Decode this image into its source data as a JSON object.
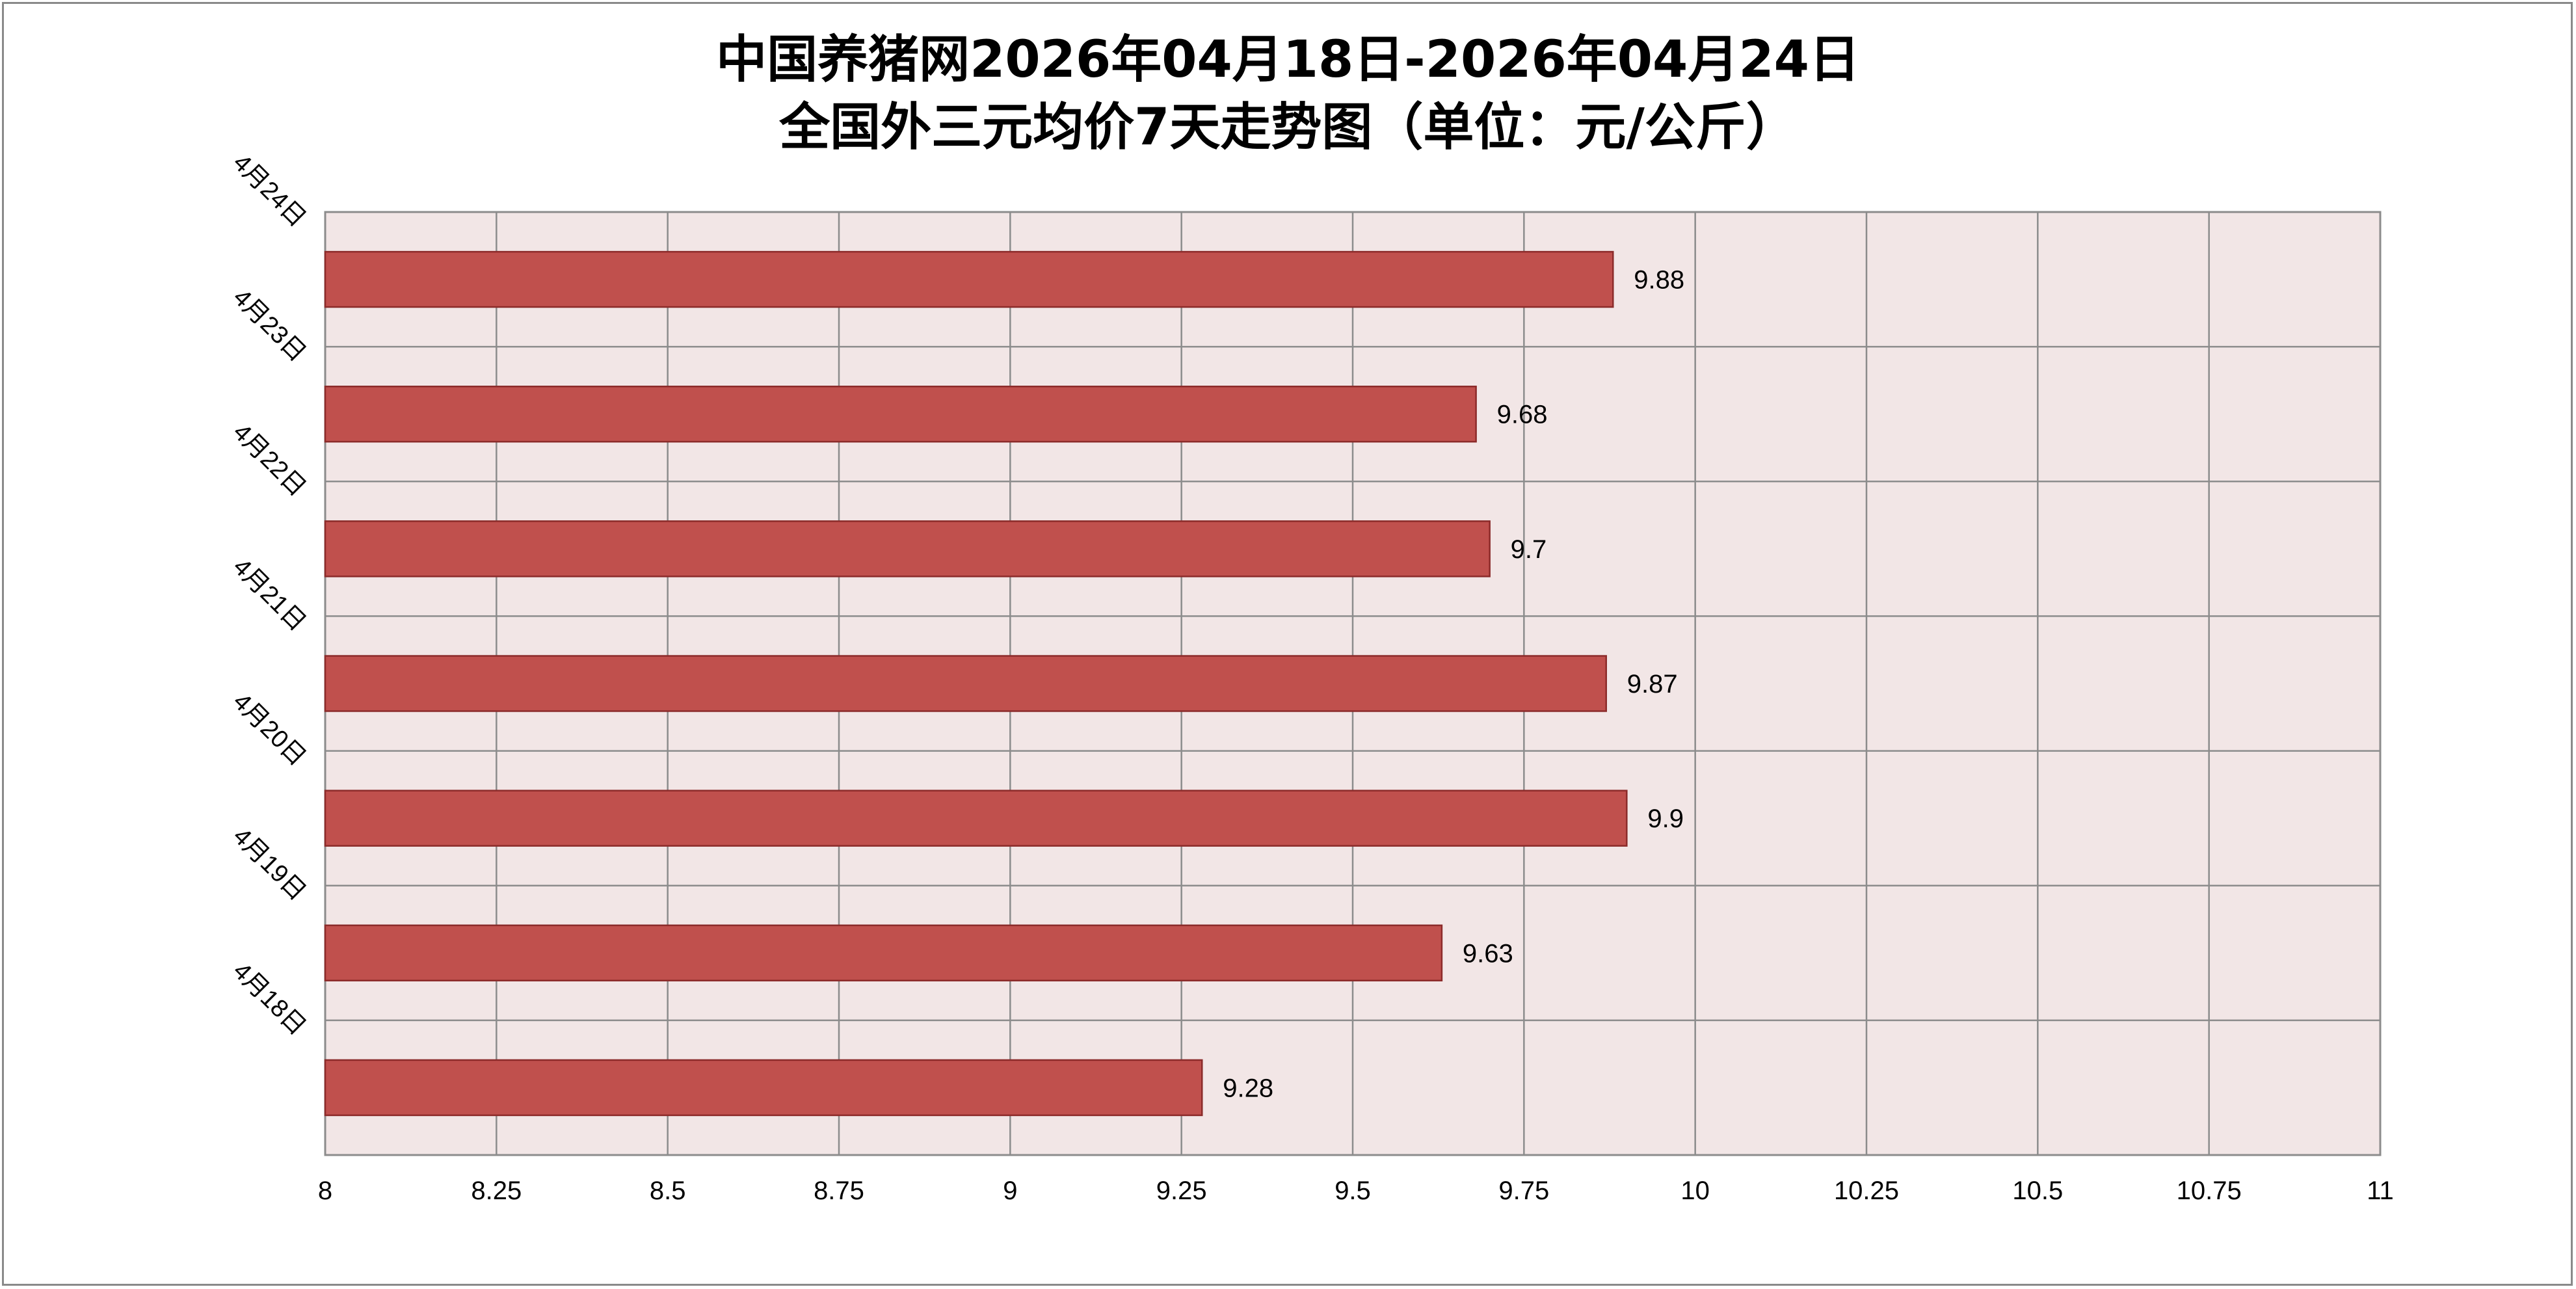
{
  "chart_data": {
    "type": "bar",
    "orientation": "horizontal",
    "title": "中国养猪网2026年04月18日-2026年04月24日",
    "subtitle": "全国外三元均价7天走势图（单位：元/公斤）",
    "categories": [
      "4月24日",
      "4月23日",
      "4月22日",
      "4月21日",
      "4月20日",
      "4月19日",
      "4月18日"
    ],
    "values": [
      9.88,
      9.68,
      9.7,
      9.87,
      9.9,
      9.63,
      9.28
    ],
    "data_labels": [
      "9.88",
      "9.68",
      "9.7",
      "9.87",
      "9.9",
      "9.63",
      "9.28"
    ],
    "xlim": [
      8,
      11
    ],
    "xticks": [
      "8",
      "8.25",
      "8.5",
      "8.75",
      "9",
      "9.25",
      "9.5",
      "9.75",
      "10",
      "10.25",
      "10.5",
      "10.75",
      "11"
    ],
    "xlabel": "",
    "ylabel": "",
    "grid": true,
    "legend": "none",
    "colors": {
      "bar": "#c0504d",
      "bar_edge": "#8c2b2a",
      "plot_bg": "#f2e6e6",
      "grid": "#8c8c8c"
    }
  }
}
